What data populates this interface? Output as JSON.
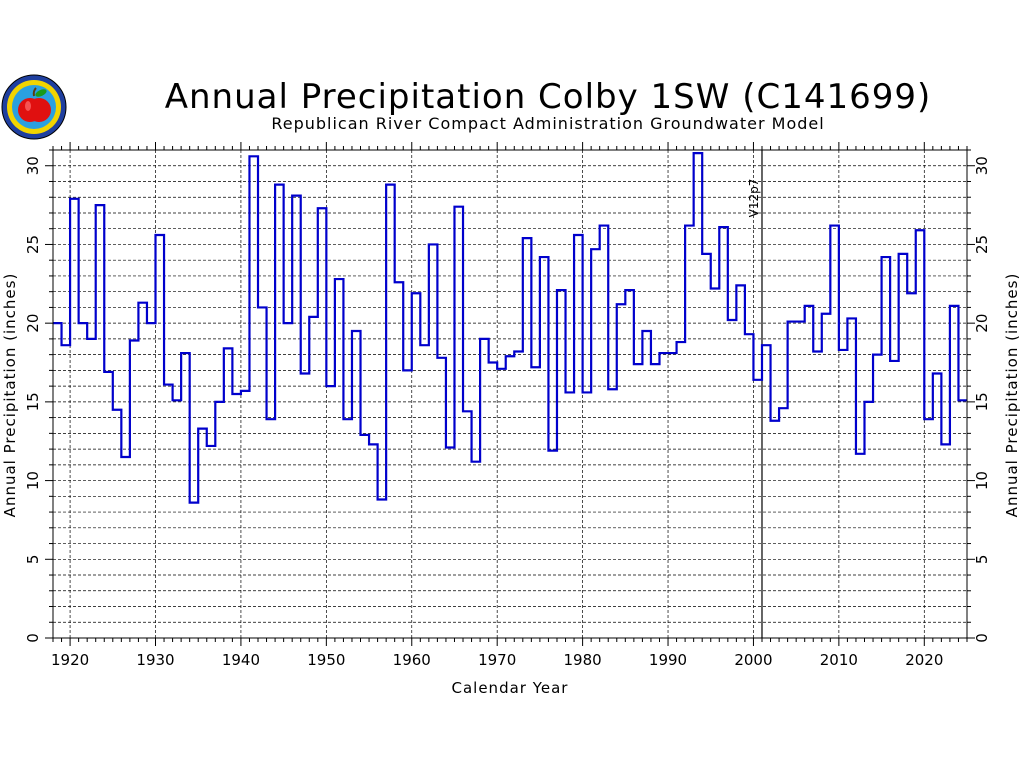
{
  "chart_data": {
    "type": "line",
    "title": "Annual Precipitation Colby 1SW (C141699)",
    "subtitle": "Republican River Compact Administration Groundwater Model",
    "xlabel": "Calendar Year",
    "ylabel": "Annual Precipitation (inches)",
    "xlim": [
      1918,
      2025
    ],
    "ylim": [
      0,
      31
    ],
    "xticks": [
      1920,
      1930,
      1940,
      1950,
      1960,
      1970,
      1980,
      1990,
      2000,
      2010,
      2020
    ],
    "yticks": [
      0,
      5,
      10,
      15,
      20,
      25,
      30
    ],
    "grid": true,
    "step_style": "annual steps",
    "colors": {
      "series": "#0000cc",
      "grid": "#000000",
      "marker_line": "#000000"
    },
    "annotation": {
      "label": "V12p7",
      "x": 2001
    },
    "series": [
      {
        "x": [
          1918,
          1919,
          1920,
          1921,
          1922,
          1923,
          1924,
          1925,
          1926,
          1927,
          1928,
          1929,
          1930,
          1931,
          1932,
          1933,
          1934,
          1935,
          1936,
          1937,
          1938,
          1939,
          1940,
          1941,
          1942,
          1943,
          1944,
          1945,
          1946,
          1947,
          1948,
          1949,
          1950,
          1951,
          1952,
          1953,
          1954,
          1955,
          1956,
          1957,
          1958,
          1959,
          1960,
          1961,
          1962,
          1963,
          1964,
          1965,
          1966,
          1967,
          1968,
          1969,
          1970,
          1971,
          1972,
          1973,
          1974,
          1975,
          1976,
          1977,
          1978,
          1979,
          1980,
          1981,
          1982,
          1983,
          1984,
          1985,
          1986,
          1987,
          1988,
          1989,
          1990,
          1991,
          1992,
          1993,
          1994,
          1995,
          1996,
          1997,
          1998,
          1999,
          2000,
          2001,
          2002,
          2003,
          2004,
          2005,
          2006,
          2007,
          2008,
          2009,
          2010,
          2011,
          2012,
          2013,
          2014,
          2015,
          2016,
          2017,
          2018,
          2019,
          2020,
          2021,
          2022,
          2023,
          2024
        ],
        "values": [
          20.0,
          18.6,
          27.9,
          20.0,
          19.0,
          27.5,
          16.9,
          14.5,
          11.5,
          18.9,
          21.3,
          20.0,
          25.6,
          16.1,
          15.1,
          18.1,
          8.6,
          13.3,
          12.2,
          15.0,
          18.4,
          15.5,
          15.7,
          30.6,
          21.0,
          13.9,
          28.8,
          20.0,
          28.1,
          16.8,
          20.4,
          27.3,
          16.0,
          22.8,
          13.9,
          19.5,
          12.9,
          12.3,
          8.8,
          28.8,
          22.6,
          17.0,
          21.9,
          18.6,
          25.0,
          17.8,
          12.1,
          27.4,
          14.4,
          11.2,
          19.0,
          17.5,
          17.1,
          17.9,
          18.2,
          25.4,
          17.2,
          24.2,
          11.9,
          22.1,
          15.6,
          25.6,
          15.6,
          24.7,
          26.2,
          15.8,
          21.2,
          22.1,
          17.4,
          19.5,
          17.4,
          18.1,
          18.1,
          18.8,
          26.2,
          30.8,
          24.4,
          22.2,
          26.1,
          20.2,
          22.4,
          19.3,
          16.4,
          18.6,
          13.8,
          14.6,
          20.1,
          20.1,
          21.1,
          18.2,
          20.6,
          26.2,
          18.3,
          20.3,
          11.7,
          15.0,
          18.0,
          24.2,
          17.6,
          24.4,
          21.9,
          25.9,
          13.9,
          16.8,
          12.3,
          21.1,
          15.1
        ]
      }
    ]
  }
}
